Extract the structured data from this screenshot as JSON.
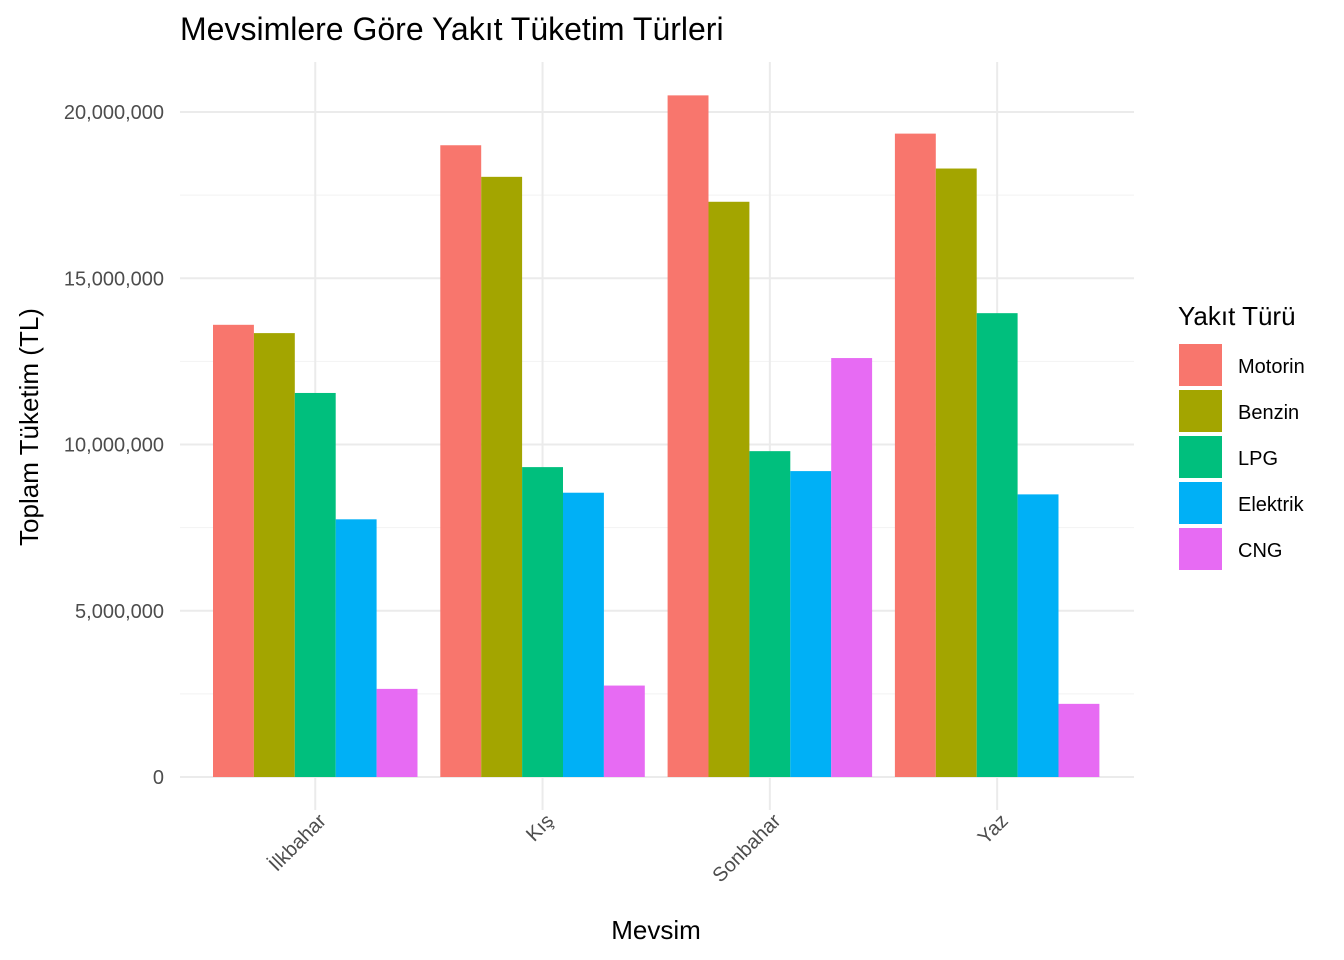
{
  "chart_data": {
    "type": "bar",
    "title": "Mevsimlere Göre Yakıt Tüketim Türleri",
    "xlabel": "Mevsim",
    "ylabel": "Toplam Tüketim (TL)",
    "categories": [
      "İlkbahar",
      "Kış",
      "Sonbahar",
      "Yaz"
    ],
    "ylim": [
      0,
      21500000
    ],
    "y_ticks": [
      0,
      5000000,
      10000000,
      15000000,
      20000000
    ],
    "y_tick_labels": [
      "0",
      "5,000,000",
      "10,000,000",
      "15,000,000",
      "20,000,000"
    ],
    "grid": true,
    "legend": {
      "title": "Yakıt Türü",
      "placement": "right"
    },
    "series": [
      {
        "name": "Motorin",
        "color": "#F8766D",
        "values": [
          13600000,
          19000000,
          20500000,
          19350000
        ]
      },
      {
        "name": "Benzin",
        "color": "#A3A500",
        "values": [
          13350000,
          18050000,
          17300000,
          18300000
        ]
      },
      {
        "name": "LPG",
        "color": "#00BF7D",
        "values": [
          11550000,
          9320000,
          9800000,
          13950000
        ]
      },
      {
        "name": "Elektrik",
        "color": "#00B0F6",
        "values": [
          7750000,
          8550000,
          9200000,
          8500000
        ]
      },
      {
        "name": "CNG",
        "color": "#E76BF3",
        "values": [
          2650000,
          2750000,
          12600000,
          2200000
        ]
      }
    ]
  }
}
